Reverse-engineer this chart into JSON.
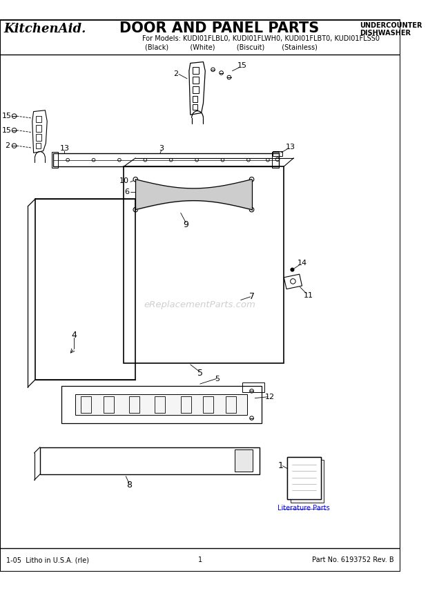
{
  "title": "DOOR AND PANEL PARTS",
  "brand": "KitchenAid.",
  "subtitle": "For Models: KUDI01FLBL0, KUDI01FLWH0, KUDI01FLBT0, KUDI01FLSS0",
  "subtitle2": "(Black)          (White)          (Biscuit)        (Stainless)",
  "top_right_line1": "UNDERCOUNTER",
  "top_right_line2": "DISHWASHER",
  "footer_left": "1-05  Litho in U.S.A. (rle)",
  "footer_center": "1",
  "footer_right": "Part No. 6193752 Rev. B",
  "watermark": "eReplacementParts.com",
  "bg_color": "#ffffff",
  "line_color": "#000000",
  "text_color": "#000000"
}
